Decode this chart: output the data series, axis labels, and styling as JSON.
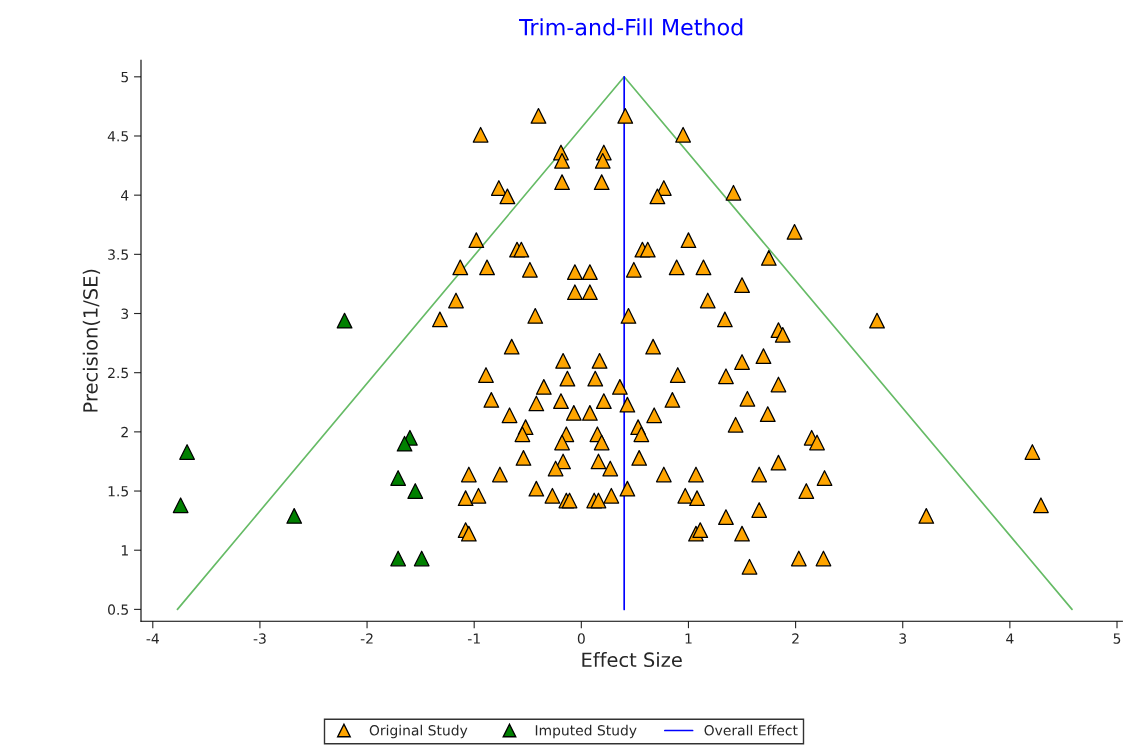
{
  "chart_data": {
    "type": "scatter",
    "title": "Trim-and-Fill Method",
    "xlabel": "Effect Size",
    "ylabel": "Precision(1/SE)",
    "xlim": [
      -4.11,
      5.05
    ],
    "ylim": [
      0.4,
      5.14
    ],
    "xticks": [
      -4,
      -3,
      -2,
      -1,
      0,
      1,
      2,
      3,
      4,
      5
    ],
    "yticks": [
      0.5,
      1,
      1.5,
      2,
      2.5,
      3,
      3.5,
      4,
      4.5,
      5
    ],
    "grid": false,
    "legend": "bottom",
    "series": [
      {
        "name": "Original Study",
        "marker": "triangle",
        "color": "#ffa500",
        "x": [
          -0.4,
          0.41,
          -0.94,
          0.95,
          -0.19,
          0.21,
          -0.18,
          0.2,
          -0.18,
          0.19,
          -0.77,
          0.77,
          -0.69,
          0.71,
          1.42,
          -0.98,
          1.0,
          1.99,
          -0.6,
          -0.56,
          0.57,
          0.62,
          -1.13,
          -0.88,
          -0.48,
          -0.06,
          0.08,
          0.49,
          0.89,
          1.14,
          1.75,
          1.5,
          -1.17,
          1.18,
          -0.06,
          0.08,
          -0.43,
          0.44,
          -1.32,
          1.34,
          2.76,
          1.84,
          1.88,
          -0.65,
          0.67,
          -0.17,
          0.17,
          1.7,
          1.5,
          -0.89,
          0.9,
          -0.13,
          0.13,
          1.35,
          -0.35,
          0.36,
          1.84,
          -0.84,
          0.85,
          -0.42,
          -0.19,
          0.21,
          0.43,
          1.55,
          -0.67,
          -0.07,
          0.08,
          0.68,
          1.74,
          -0.52,
          -0.55,
          0.53,
          0.56,
          -0.14,
          -0.18,
          0.15,
          0.19,
          1.44,
          2.15,
          2.2,
          -0.54,
          0.54,
          -0.17,
          -0.24,
          0.16,
          0.27,
          -1.05,
          -0.76,
          0.77,
          1.07,
          1.66,
          1.84,
          2.27,
          -0.42,
          0.43,
          -1.08,
          -0.96,
          -0.27,
          0.28,
          -0.14,
          -0.11,
          0.12,
          0.16,
          0.97,
          1.08,
          2.1,
          1.35,
          1.66,
          3.22,
          4.29,
          4.21,
          -1.08,
          -1.05,
          1.07,
          1.11,
          1.5,
          2.03,
          2.26,
          1.57
        ],
        "values": [
          4.67,
          4.67,
          4.51,
          4.51,
          4.36,
          4.36,
          4.29,
          4.29,
          4.11,
          4.11,
          4.06,
          4.06,
          3.99,
          3.99,
          4.02,
          3.62,
          3.62,
          3.69,
          3.54,
          3.54,
          3.54,
          3.54,
          3.39,
          3.39,
          3.37,
          3.35,
          3.35,
          3.37,
          3.39,
          3.39,
          3.47,
          3.24,
          3.11,
          3.11,
          3.18,
          3.18,
          2.98,
          2.98,
          2.95,
          2.95,
          2.94,
          2.86,
          2.82,
          2.72,
          2.72,
          2.6,
          2.6,
          2.64,
          2.59,
          2.48,
          2.48,
          2.45,
          2.45,
          2.47,
          2.38,
          2.38,
          2.4,
          2.27,
          2.27,
          2.24,
          2.26,
          2.26,
          2.23,
          2.28,
          2.14,
          2.16,
          2.16,
          2.14,
          2.15,
          2.04,
          1.98,
          2.04,
          1.98,
          1.98,
          1.91,
          1.98,
          1.91,
          2.06,
          1.95,
          1.91,
          1.78,
          1.78,
          1.75,
          1.69,
          1.75,
          1.69,
          1.64,
          1.64,
          1.64,
          1.64,
          1.64,
          1.74,
          1.61,
          1.52,
          1.52,
          1.44,
          1.46,
          1.46,
          1.46,
          1.42,
          1.42,
          1.42,
          1.42,
          1.46,
          1.44,
          1.5,
          1.28,
          1.34,
          1.29,
          1.38,
          1.83,
          1.17,
          1.14,
          1.14,
          1.17,
          1.14,
          0.93,
          0.93,
          0.86
        ]
      },
      {
        "name": "Imputed Study",
        "marker": "triangle",
        "color": "#008000",
        "x": [
          -3.68,
          -3.74,
          -2.68,
          -2.21,
          -1.6,
          -1.65,
          -1.71,
          -1.55,
          -1.71,
          -1.49
        ],
        "values": [
          1.83,
          1.38,
          1.29,
          2.94,
          1.95,
          1.9,
          1.61,
          1.5,
          0.93,
          0.93
        ]
      },
      {
        "type": "line",
        "color": "#66bb66",
        "x": [
          -3.77,
          0.4,
          4.58
        ],
        "values": [
          0.5,
          5,
          0.5
        ]
      },
      {
        "name": "Overall Effect",
        "type": "line",
        "color": "#0000ff",
        "x": [
          0.4,
          0.4
        ],
        "values": [
          0.5,
          5
        ]
      }
    ]
  }
}
